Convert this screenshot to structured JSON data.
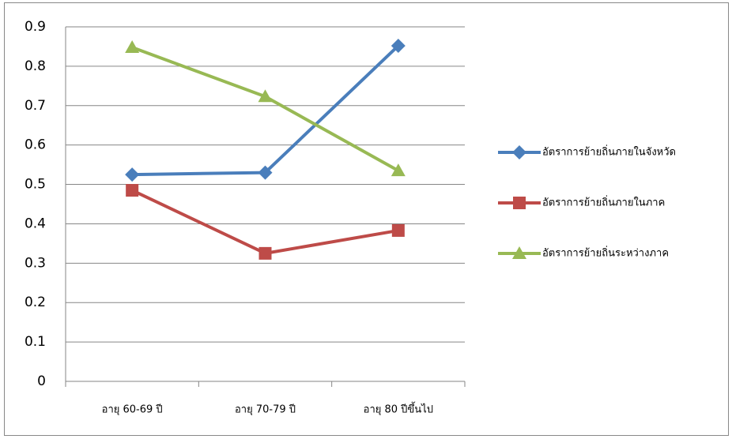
{
  "chart_data": {
    "type": "line",
    "categories": [
      "อายุ 60-69 ปี",
      "อายุ 70-79 ปี",
      "อายุ 80 ปีขึ้นไป"
    ],
    "series": [
      {
        "name": "อัตราการย้ายถิ่นภายในจังหวัด",
        "color": "#4a7ebb",
        "values": [
          0.525,
          0.53,
          0.852
        ]
      },
      {
        "name": "อัตราการย้ายถิ่นภายในภาค",
        "color": "#be4b48",
        "values": [
          0.485,
          0.325,
          0.383
        ]
      },
      {
        "name": "อัตราการย้ายถิ่นระหว่างภาค",
        "color": "#98b954",
        "values": [
          0.848,
          0.723,
          0.535
        ]
      }
    ],
    "ylim": [
      0,
      0.9
    ],
    "yticks": [
      0,
      0.1,
      0.2,
      0.3,
      0.4,
      0.5,
      0.6,
      0.7,
      0.8,
      0.9
    ],
    "grid": true,
    "legend": "right"
  }
}
